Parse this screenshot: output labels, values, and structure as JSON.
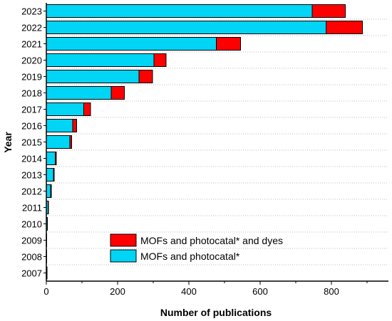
{
  "chart_data": {
    "type": "bar",
    "orientation": "horizontal",
    "stacked": true,
    "title": "",
    "xlabel": "Number of publications",
    "ylabel": "Year",
    "xlim": [
      0,
      960
    ],
    "xticks": [
      0,
      200,
      400,
      600,
      800
    ],
    "grid": "horizontal dotted",
    "legend_position": "bottom-center",
    "categories": [
      "2023",
      "2022",
      "2021",
      "2020",
      "2019",
      "2018",
      "2017",
      "2016",
      "2015",
      "2014",
      "2013",
      "2012",
      "2011",
      "2010",
      "2009",
      "2008",
      "2007"
    ],
    "series": [
      {
        "name": "MOFs and photocatal*",
        "color": "#00d5f5",
        "values": [
          746,
          785,
          477,
          302,
          260,
          182,
          105,
          74,
          66,
          25,
          20,
          12,
          5,
          3,
          1,
          1,
          0
        ]
      },
      {
        "name": "MOFs and photocatal* and dyes",
        "color": "#ff0000",
        "values": [
          93,
          102,
          68,
          34,
          38,
          37,
          19,
          11,
          5,
          3,
          2,
          2,
          1,
          0,
          0,
          0,
          0
        ]
      }
    ],
    "legend_order": [
      "MOFs and photocatal* and dyes",
      "MOFs and photocatal*"
    ]
  }
}
